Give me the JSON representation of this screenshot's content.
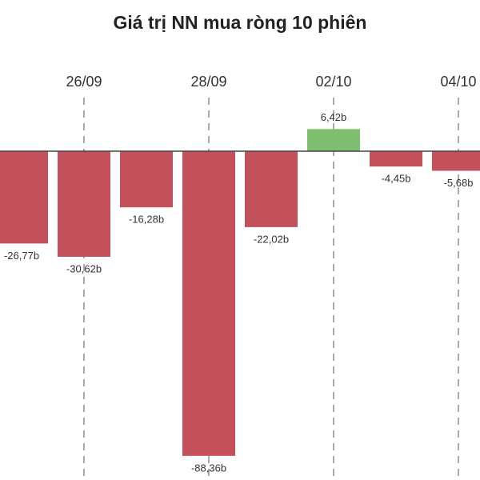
{
  "chart_data": {
    "type": "bar",
    "title": "Giá trị NN mua ròng 10 phiên",
    "categories": [
      null,
      "26/09",
      null,
      "28/09",
      null,
      "02/10",
      null,
      "04/10"
    ],
    "values": [
      -26.77,
      -30.62,
      -16.28,
      -88.36,
      -22.02,
      6.42,
      -4.45,
      -5.68
    ],
    "value_labels": [
      "-26,77b",
      "-30,62b",
      "-16,28b",
      "-88,36b",
      "-22,02b",
      "6,42b",
      "-4,45b",
      "-5,68b"
    ],
    "positive_color": "#7dbf6e",
    "negative_color": "#c4505c"
  }
}
